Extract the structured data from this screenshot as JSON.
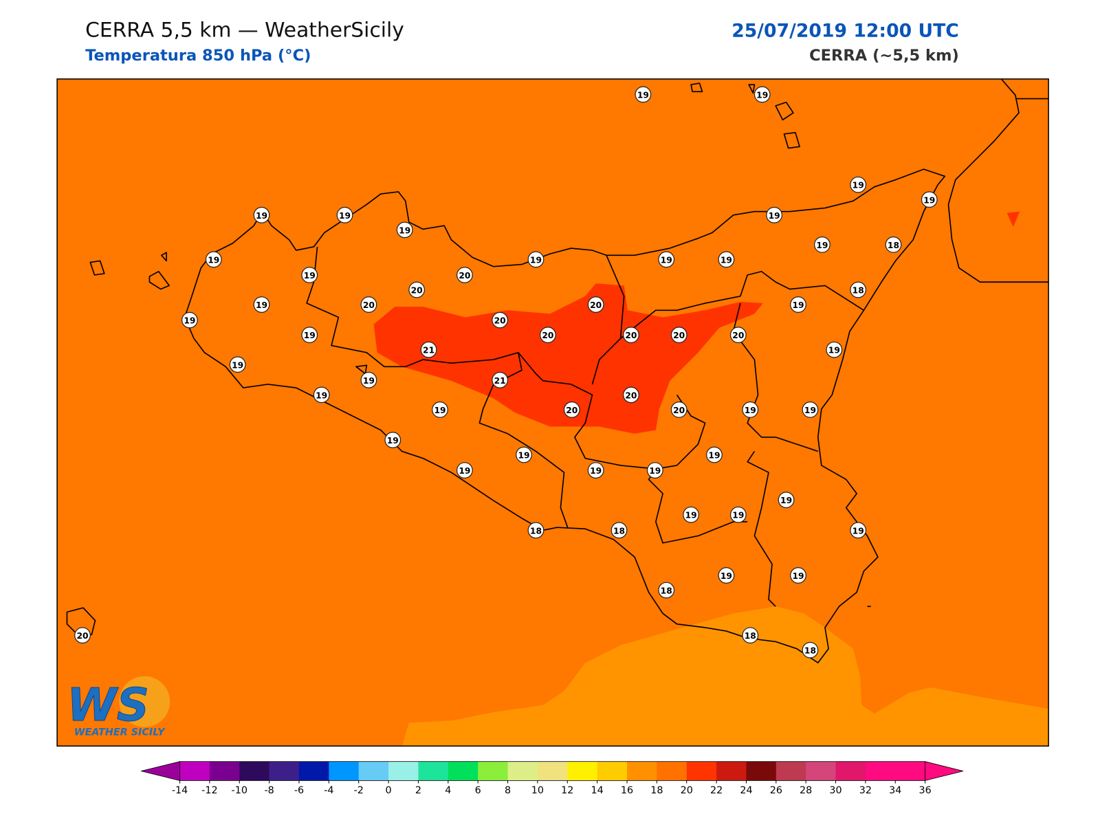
{
  "header": {
    "title": "CERRA 5,5 km — WeatherSicily",
    "subtitle": "Temperatura 850 hPa (°C)",
    "datetime": "25/07/2019 12:00 UTC",
    "model": "CERRA (~5,5 km)"
  },
  "stations": [
    19,
    19,
    19,
    19,
    19,
    19,
    19,
    19,
    19,
    19,
    19,
    19,
    19,
    18,
    19,
    20,
    20,
    18,
    19,
    20,
    20,
    19,
    19,
    20,
    19,
    20,
    20,
    20,
    20,
    21,
    19,
    19,
    19,
    21,
    19,
    20,
    19,
    20,
    20,
    19,
    19,
    19,
    19,
    19,
    19,
    19,
    19,
    19,
    19,
    19,
    19,
    18,
    18,
    19,
    19,
    18,
    18,
    18,
    20
  ],
  "colorbar": {
    "ticks": [
      -14,
      -12,
      -10,
      -8,
      -6,
      -4,
      -2,
      0,
      2,
      4,
      6,
      8,
      10,
      12,
      14,
      16,
      18,
      20,
      22,
      24,
      26,
      28,
      30,
      32,
      34,
      36
    ]
  },
  "logo": {
    "mark": "WS",
    "name": "WEATHER SICILY"
  }
}
